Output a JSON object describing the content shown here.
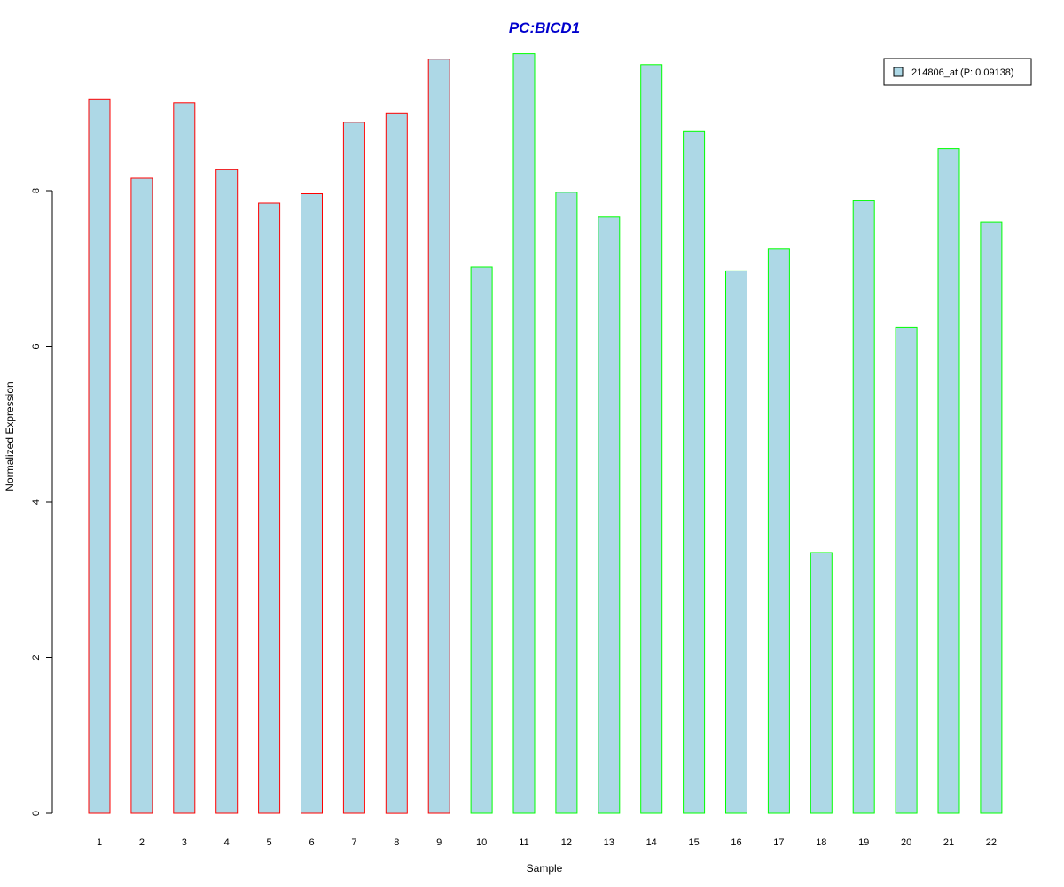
{
  "chart_data": {
    "type": "bar",
    "title": "PC:BICD1",
    "xlabel": "Sample",
    "ylabel": "Normalized Expression",
    "categories": [
      "1",
      "2",
      "3",
      "4",
      "5",
      "6",
      "7",
      "8",
      "9",
      "10",
      "11",
      "12",
      "13",
      "14",
      "15",
      "16",
      "17",
      "18",
      "19",
      "20",
      "21",
      "22"
    ],
    "series": [
      {
        "name": "214806_at (P: 0.09138)",
        "values": [
          9.17,
          8.16,
          9.13,
          8.27,
          7.84,
          7.96,
          8.88,
          9.0,
          9.69,
          7.02,
          9.76,
          7.98,
          7.66,
          9.62,
          8.76,
          6.97,
          7.25,
          3.35,
          7.87,
          6.24,
          8.54,
          7.6
        ]
      }
    ],
    "bar_outline_colors": [
      "#ff0000",
      "#ff0000",
      "#ff0000",
      "#ff0000",
      "#ff0000",
      "#ff0000",
      "#ff0000",
      "#ff0000",
      "#ff0000",
      "#00ff00",
      "#00ff00",
      "#00ff00",
      "#00ff00",
      "#00ff00",
      "#00ff00",
      "#00ff00",
      "#00ff00",
      "#00ff00",
      "#00ff00",
      "#00ff00",
      "#00ff00",
      "#00ff00"
    ],
    "bar_fill_color": "#add8e6",
    "title_color": "#0000cd",
    "yticks": [
      "0",
      "2",
      "4",
      "6",
      "8"
    ],
    "ylim": [
      0,
      10
    ],
    "grid": false,
    "legend_position": "top-right"
  }
}
